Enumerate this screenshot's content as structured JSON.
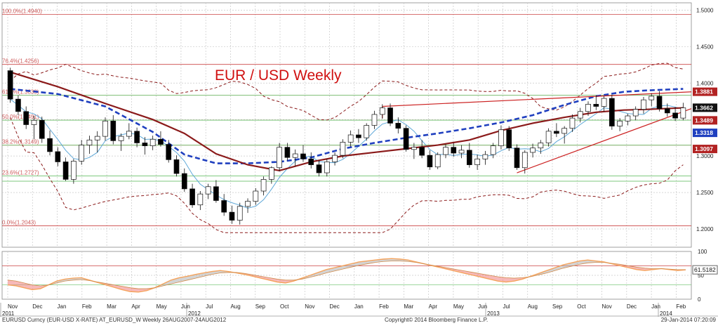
{
  "title": "EUR / USD Weekly",
  "footer": {
    "left": "EURUSD Curncy (EUR-USD X-RATE) AT_EURUSD_W  Weekly 26AUG2007-24AUG2012",
    "center": "Copyright© 2014 Bloomberg Finance L.P.",
    "right": "29-Jan-2014 07:20:09"
  },
  "colors": {
    "background": "#ffffff",
    "grid": "#c8c8c8",
    "candle_up": "#ffffff",
    "candle_down": "#000000",
    "ma_slow": "#8b1a1a",
    "ma_dashed": "#1f3fbf",
    "ma_fast": "#5fa8d8",
    "bollinger": "#8b1a1a",
    "fib_line": "#cc4444",
    "green_line": "#7fc97f",
    "trendline": "#cc2222",
    "title": "#d01010",
    "osc_orange": "#f5a35c",
    "osc_grey": "#b0b0b0",
    "osc_red_fill": "#f08080"
  },
  "chart_data": [
    {
      "type": "candlestick",
      "title": "EUR / USD Weekly",
      "xlabel": "",
      "ylabel": "",
      "ylim": [
        1.175,
        1.51
      ],
      "grid": true,
      "x_ticks": [
        "Nov",
        "Dec",
        "Jan",
        "Feb",
        "Mar",
        "Apr",
        "May",
        "Jun",
        "Jul",
        "Aug",
        "Sep",
        "Oct",
        "Nov",
        "Dec",
        "Jan",
        "Feb",
        "Mar",
        "Apr",
        "May",
        "Jun",
        "Jul",
        "Aug",
        "Sep",
        "Oct",
        "Nov",
        "Dec",
        "Jan",
        "Feb"
      ],
      "year_labels": [
        "2011",
        "2012",
        "2013",
        "2014"
      ],
      "y_ticks": [
        "1.5000",
        "1.4500",
        "1.4000",
        "1.3500",
        "1.3000",
        "1.2500",
        "1.2000"
      ],
      "fibonacci": [
        {
          "label": "100.0%(1.4940)",
          "value": 1.494
        },
        {
          "label": "76.4%(1.4256)",
          "value": 1.4256
        },
        {
          "label": "61.8%(1.3833)",
          "value": 1.3833
        },
        {
          "label": "50.0%(1.3491)",
          "value": 1.3491
        },
        {
          "label": "38.2%(1.3149)",
          "value": 1.3149
        },
        {
          "label": "23.6%(1.2727)",
          "value": 1.2727
        },
        {
          "label": "0.0%(1.2043)",
          "value": 1.2043
        }
      ],
      "green_levels": [
        1.3833,
        1.3491,
        1.3149,
        1.2727,
        1.2655
      ],
      "price_tags": [
        {
          "label": "1.3881",
          "value": 1.3881,
          "color": "#b22222"
        },
        {
          "label": "1.3662",
          "value": 1.3662,
          "color": "#111111"
        },
        {
          "label": "1.3489",
          "value": 1.3489,
          "color": "#b22222"
        },
        {
          "label": "1.3318",
          "value": 1.3318,
          "color": "#1f3fbf"
        },
        {
          "label": "1.3097",
          "value": 1.3097,
          "color": "#b22222"
        }
      ],
      "candles": [
        [
          1.417,
          1.421,
          1.373,
          1.378
        ],
        [
          1.378,
          1.383,
          1.356,
          1.361
        ],
        [
          1.361,
          1.368,
          1.337,
          1.343
        ],
        [
          1.343,
          1.355,
          1.323,
          1.349
        ],
        [
          1.349,
          1.354,
          1.318,
          1.324
        ],
        [
          1.324,
          1.335,
          1.301,
          1.306
        ],
        [
          1.306,
          1.312,
          1.286,
          1.292
        ],
        [
          1.292,
          1.298,
          1.266,
          1.268
        ],
        [
          1.268,
          1.296,
          1.262,
          1.293
        ],
        [
          1.293,
          1.322,
          1.288,
          1.315
        ],
        [
          1.315,
          1.328,
          1.303,
          1.322
        ],
        [
          1.322,
          1.334,
          1.305,
          1.327
        ],
        [
          1.327,
          1.353,
          1.321,
          1.348
        ],
        [
          1.348,
          1.356,
          1.316,
          1.321
        ],
        [
          1.321,
          1.331,
          1.307,
          1.327
        ],
        [
          1.327,
          1.345,
          1.323,
          1.334
        ],
        [
          1.334,
          1.339,
          1.312,
          1.318
        ],
        [
          1.318,
          1.326,
          1.302,
          1.314
        ],
        [
          1.314,
          1.328,
          1.308,
          1.323
        ],
        [
          1.323,
          1.334,
          1.313,
          1.316
        ],
        [
          1.316,
          1.322,
          1.291,
          1.295
        ],
        [
          1.295,
          1.301,
          1.272,
          1.276
        ],
        [
          1.276,
          1.283,
          1.251,
          1.255
        ],
        [
          1.255,
          1.262,
          1.229,
          1.233
        ],
        [
          1.233,
          1.252,
          1.226,
          1.248
        ],
        [
          1.248,
          1.262,
          1.241,
          1.258
        ],
        [
          1.258,
          1.267,
          1.236,
          1.239
        ],
        [
          1.239,
          1.248,
          1.218,
          1.223
        ],
        [
          1.223,
          1.232,
          1.207,
          1.212
        ],
        [
          1.212,
          1.236,
          1.206,
          1.231
        ],
        [
          1.231,
          1.242,
          1.222,
          1.238
        ],
        [
          1.238,
          1.256,
          1.233,
          1.252
        ],
        [
          1.252,
          1.272,
          1.246,
          1.268
        ],
        [
          1.268,
          1.286,
          1.262,
          1.284
        ],
        [
          1.284,
          1.318,
          1.279,
          1.312
        ],
        [
          1.312,
          1.318,
          1.294,
          1.298
        ],
        [
          1.298,
          1.309,
          1.286,
          1.303
        ],
        [
          1.303,
          1.315,
          1.292,
          1.296
        ],
        [
          1.296,
          1.305,
          1.283,
          1.288
        ],
        [
          1.288,
          1.294,
          1.272,
          1.277
        ],
        [
          1.277,
          1.296,
          1.272,
          1.292
        ],
        [
          1.292,
          1.305,
          1.287,
          1.301
        ],
        [
          1.301,
          1.323,
          1.297,
          1.319
        ],
        [
          1.319,
          1.335,
          1.313,
          1.329
        ],
        [
          1.329,
          1.337,
          1.318,
          1.325
        ],
        [
          1.325,
          1.345,
          1.321,
          1.342
        ],
        [
          1.342,
          1.362,
          1.337,
          1.357
        ],
        [
          1.357,
          1.371,
          1.351,
          1.366
        ],
        [
          1.366,
          1.372,
          1.341,
          1.345
        ],
        [
          1.345,
          1.353,
          1.331,
          1.338
        ],
        [
          1.338,
          1.342,
          1.306,
          1.309
        ],
        [
          1.309,
          1.318,
          1.296,
          1.312
        ],
        [
          1.312,
          1.322,
          1.297,
          1.301
        ],
        [
          1.301,
          1.308,
          1.281,
          1.285
        ],
        [
          1.285,
          1.305,
          1.282,
          1.302
        ],
        [
          1.302,
          1.316,
          1.297,
          1.312
        ],
        [
          1.312,
          1.318,
          1.299,
          1.304
        ],
        [
          1.304,
          1.315,
          1.297,
          1.308
        ],
        [
          1.308,
          1.318,
          1.284,
          1.288
        ],
        [
          1.288,
          1.302,
          1.281,
          1.296
        ],
        [
          1.296,
          1.307,
          1.288,
          1.302
        ],
        [
          1.302,
          1.318,
          1.297,
          1.314
        ],
        [
          1.314,
          1.342,
          1.309,
          1.336
        ],
        [
          1.336,
          1.341,
          1.307,
          1.311
        ],
        [
          1.311,
          1.316,
          1.281,
          1.284
        ],
        [
          1.284,
          1.308,
          1.276,
          1.305
        ],
        [
          1.305,
          1.317,
          1.298,
          1.311
        ],
        [
          1.311,
          1.322,
          1.303,
          1.318
        ],
        [
          1.318,
          1.338,
          1.313,
          1.334
        ],
        [
          1.334,
          1.345,
          1.326,
          1.331
        ],
        [
          1.331,
          1.341,
          1.317,
          1.338
        ],
        [
          1.338,
          1.357,
          1.333,
          1.352
        ],
        [
          1.352,
          1.366,
          1.346,
          1.361
        ],
        [
          1.361,
          1.375,
          1.355,
          1.371
        ],
        [
          1.371,
          1.383,
          1.363,
          1.368
        ],
        [
          1.368,
          1.382,
          1.361,
          1.379
        ],
        [
          1.379,
          1.384,
          1.336,
          1.341
        ],
        [
          1.341,
          1.352,
          1.334,
          1.348
        ],
        [
          1.348,
          1.358,
          1.342,
          1.355
        ],
        [
          1.355,
          1.368,
          1.349,
          1.364
        ],
        [
          1.364,
          1.381,
          1.358,
          1.377
        ],
        [
          1.377,
          1.386,
          1.368,
          1.382
        ],
        [
          1.382,
          1.389,
          1.361,
          1.365
        ],
        [
          1.365,
          1.372,
          1.354,
          1.359
        ],
        [
          1.359,
          1.367,
          1.348,
          1.352
        ],
        [
          1.352,
          1.373,
          1.349,
          1.366
        ]
      ],
      "series": [
        {
          "name": "",
          "style": "dashed-thick",
          "values": [
            [
              0,
              1.392
            ],
            [
              12,
              1.385
            ],
            [
              24,
              1.368
            ],
            [
              36,
              1.333
            ],
            [
              44,
              1.302
            ],
            [
              52,
              1.29
            ],
            [
              60,
              1.29
            ],
            [
              68,
              1.292
            ],
            [
              76,
              1.298
            ],
            [
              84,
              1.31
            ],
            [
              92,
              1.318
            ],
            [
              100,
              1.325
            ],
            [
              108,
              1.331
            ],
            [
              116,
              1.338
            ],
            [
              124,
              1.346
            ],
            [
              132,
              1.356
            ],
            [
              140,
              1.37
            ],
            [
              148,
              1.382
            ],
            [
              155,
              1.388
            ],
            [
              161,
              1.39
            ],
            [
              170,
              1.392
            ]
          ]
        },
        {
          "name": "",
          "style": "solid-thick",
          "values": [
            [
              0,
              1.415
            ],
            [
              12,
              1.395
            ],
            [
              24,
              1.372
            ],
            [
              36,
              1.35
            ],
            [
              44,
              1.331
            ],
            [
              52,
              1.303
            ],
            [
              60,
              1.288
            ],
            [
              68,
              1.28
            ],
            [
              76,
              1.292
            ],
            [
              84,
              1.3
            ],
            [
              92,
              1.305
            ],
            [
              100,
              1.31
            ],
            [
              108,
              1.315
            ],
            [
              116,
              1.322
            ],
            [
              124,
              1.335
            ],
            [
              132,
              1.345
            ],
            [
              140,
              1.353
            ],
            [
              148,
              1.36
            ],
            [
              155,
              1.363
            ],
            [
              161,
              1.364
            ],
            [
              170,
              1.366
            ]
          ]
        }
      ]
    },
    {
      "type": "line",
      "title": "",
      "ylim": [
        0,
        100
      ],
      "y_ticks": [
        "100",
        "50",
        "0"
      ],
      "price_tags": [
        {
          "label": "61.5182",
          "value": 61.5182
        }
      ],
      "series": [
        {
          "name": "",
          "values": [
            30,
            28,
            24,
            20,
            22,
            30,
            38,
            42,
            44,
            45,
            40,
            35,
            30,
            25,
            20,
            16,
            15,
            18,
            24,
            32,
            40,
            45,
            48,
            52,
            55,
            58,
            60,
            58,
            55,
            52,
            48,
            44,
            40,
            36,
            34,
            38,
            44,
            50,
            56,
            62,
            66,
            70,
            74,
            78,
            80,
            82,
            84,
            85,
            84,
            82,
            78,
            74,
            70,
            66,
            62,
            58,
            54,
            50,
            46,
            42,
            38,
            36,
            38,
            42,
            48,
            54,
            60,
            66,
            72,
            76,
            80,
            82,
            80,
            78,
            74,
            70,
            66,
            62,
            60,
            62,
            64,
            62,
            60,
            61.5
          ]
        },
        {
          "name": "",
          "values": [
            40,
            38,
            34,
            30,
            28,
            30,
            34,
            38,
            40,
            41,
            39,
            36,
            33,
            30,
            27,
            24,
            22,
            22,
            24,
            28,
            32,
            36,
            40,
            44,
            48,
            52,
            55,
            56,
            56,
            54,
            51,
            48,
            45,
            42,
            40,
            40,
            42,
            46,
            50,
            55,
            59,
            63,
            67,
            71,
            74,
            77,
            79,
            80,
            80,
            79,
            77,
            74,
            71,
            68,
            65,
            62,
            59,
            56,
            53,
            50,
            47,
            45,
            44,
            45,
            47,
            51,
            55,
            60,
            65,
            69,
            73,
            76,
            77,
            77,
            75,
            73,
            70,
            67,
            65,
            64,
            64,
            63,
            62,
            62
          ]
        }
      ]
    }
  ]
}
